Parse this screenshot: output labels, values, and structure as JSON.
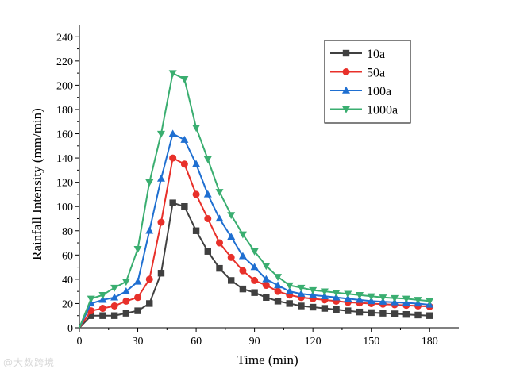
{
  "chart_data": {
    "type": "line",
    "title": "",
    "xlabel": "Time (min)",
    "ylabel": "Rainfall Intensity (mm/min)",
    "xlim": [
      0,
      195
    ],
    "ylim": [
      0,
      250
    ],
    "xticks": [
      0,
      30,
      60,
      90,
      120,
      150,
      180
    ],
    "yticks": [
      0,
      20,
      40,
      60,
      80,
      100,
      120,
      140,
      160,
      180,
      200,
      220,
      240
    ],
    "grid": false,
    "legend_position": "top-right",
    "x": [
      0,
      6,
      12,
      18,
      24,
      30,
      36,
      42,
      48,
      54,
      60,
      66,
      72,
      78,
      84,
      90,
      96,
      102,
      108,
      114,
      120,
      126,
      132,
      138,
      144,
      150,
      156,
      162,
      168,
      174,
      180
    ],
    "series": [
      {
        "name": "10a",
        "color": "#404040",
        "marker": "square",
        "values": [
          0,
          10,
          10,
          10,
          12,
          14,
          20,
          45,
          103,
          100,
          80,
          63,
          49,
          39,
          32,
          29,
          25,
          22,
          20,
          18,
          17,
          16,
          15,
          14,
          13,
          12.5,
          12,
          11.5,
          11,
          10.5,
          10
        ]
      },
      {
        "name": "50a",
        "color": "#e8302a",
        "marker": "circle",
        "values": [
          0,
          14,
          16,
          18,
          22,
          25,
          40,
          87,
          140,
          135,
          110,
          90,
          70,
          58,
          47,
          39,
          35,
          30,
          27,
          25,
          24,
          23,
          22,
          21,
          20.5,
          20,
          19.5,
          19,
          18.5,
          18,
          17.5
        ]
      },
      {
        "name": "100a",
        "color": "#1f6fd1",
        "marker": "triangle-up",
        "values": [
          0,
          20,
          23,
          25,
          30,
          38,
          80,
          123,
          160,
          155,
          135,
          110,
          90,
          75,
          59,
          50,
          40,
          35,
          30,
          28,
          27,
          26,
          25,
          24,
          23,
          22,
          21.5,
          21,
          20.5,
          20,
          19
        ]
      },
      {
        "name": "1000a",
        "color": "#3aae70",
        "marker": "triangle-down",
        "values": [
          0,
          24,
          27,
          33,
          38,
          65,
          120,
          160,
          210,
          205,
          165,
          139,
          112,
          93,
          77,
          63,
          51,
          42,
          35,
          33,
          31,
          30,
          29,
          28,
          27,
          26,
          25,
          24.5,
          24,
          23,
          22
        ]
      }
    ]
  }
}
